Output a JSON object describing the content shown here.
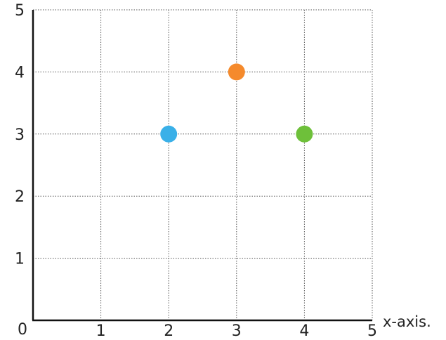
{
  "chart_data": {
    "type": "scatter",
    "title": "",
    "xlabel": "x-axis.",
    "ylabel": "",
    "origin_label": "0",
    "xlim": [
      0,
      5
    ],
    "ylim": [
      0,
      5
    ],
    "x_ticks": [
      {
        "value": 1,
        "label": "1"
      },
      {
        "value": 2,
        "label": "2"
      },
      {
        "value": 3,
        "label": "3"
      },
      {
        "value": 4,
        "label": "4"
      },
      {
        "value": 5,
        "label": "5"
      }
    ],
    "y_ticks": [
      {
        "value": 1,
        "label": "1"
      },
      {
        "value": 2,
        "label": "2"
      },
      {
        "value": 3,
        "label": "3"
      },
      {
        "value": 4,
        "label": "4"
      },
      {
        "value": 5,
        "label": "5"
      }
    ],
    "grid": true,
    "points": [
      {
        "x": 2,
        "y": 3,
        "color": "#3ab0e8"
      },
      {
        "x": 3,
        "y": 4,
        "color": "#f58a2c"
      },
      {
        "x": 4,
        "y": 3,
        "color": "#6ec03a"
      }
    ]
  }
}
